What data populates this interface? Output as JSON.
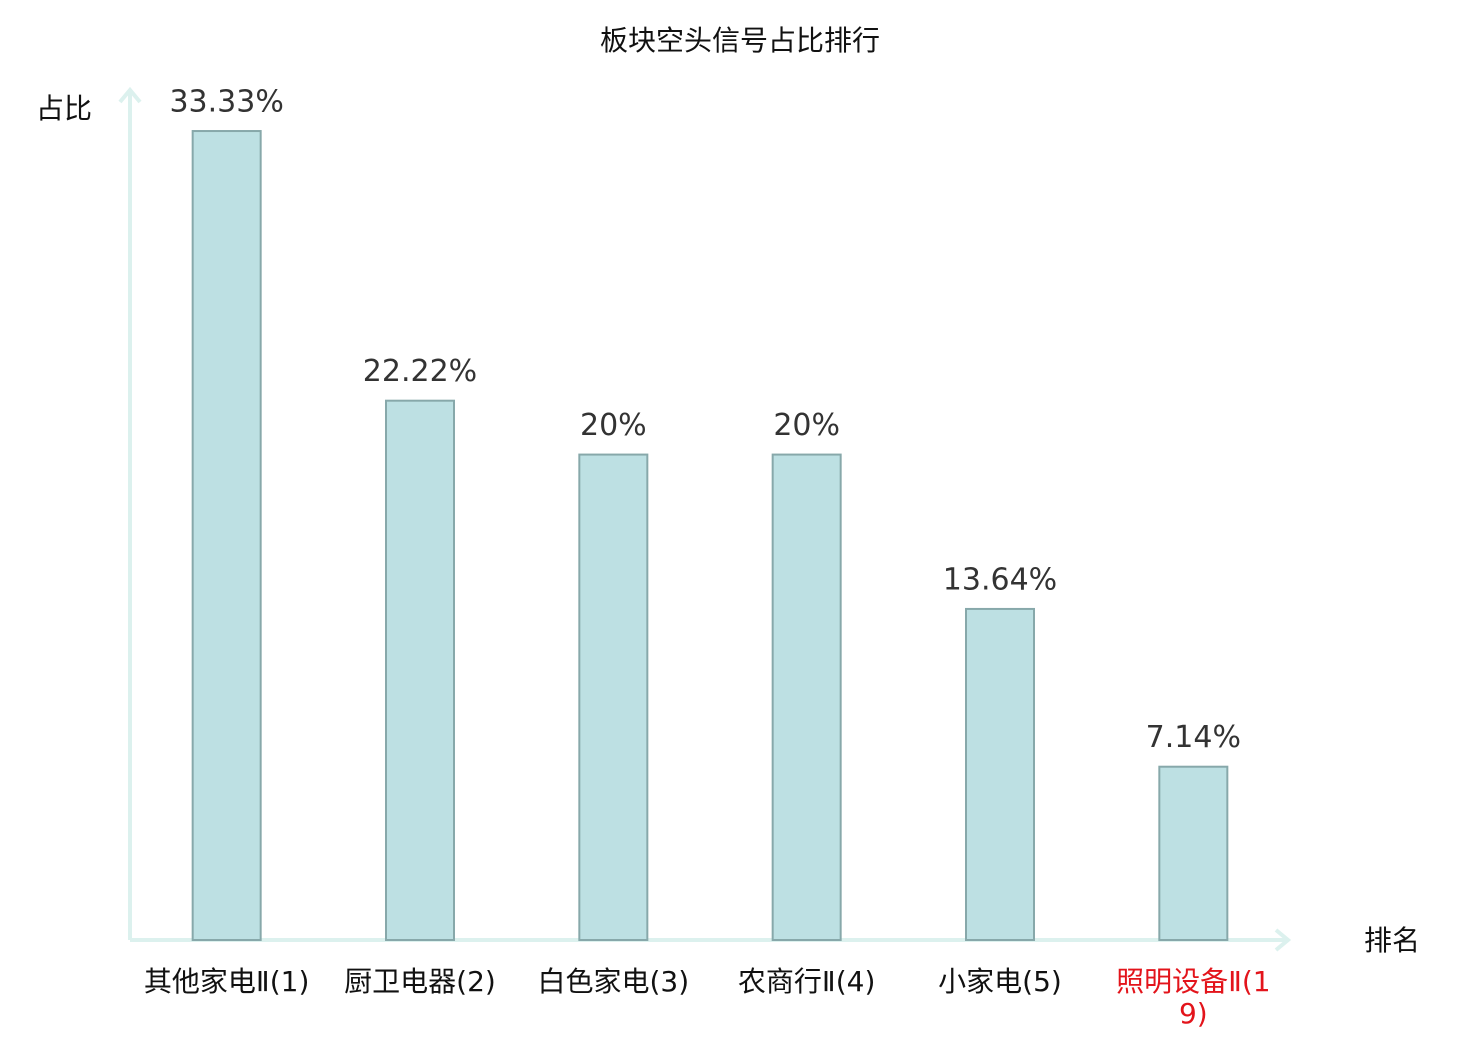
{
  "chart_data": {
    "type": "bar",
    "title": "板块空头信号占比排行",
    "y_label": "占比",
    "x_label": "排名",
    "categories": [
      "其他家电Ⅱ(1)",
      "厨卫电器(2)",
      "白色家电(3)",
      "农商行Ⅱ(4)",
      "小家电(5)",
      "照明设备Ⅱ(19)"
    ],
    "values": [
      33.33,
      22.22,
      20,
      20,
      13.64,
      7.14
    ],
    "value_labels": [
      "33.33%",
      "22.22%",
      "20%",
      "20%",
      "13.64%",
      "7.14%"
    ],
    "color": "#bde0e3",
    "edge_color": "#87a8aa",
    "category_label_colors": [
      "#111111",
      "#111111",
      "#111111",
      "#111111",
      "#111111",
      "#e3141b"
    ],
    "ylim": [
      0,
      35
    ],
    "grid": false
  }
}
